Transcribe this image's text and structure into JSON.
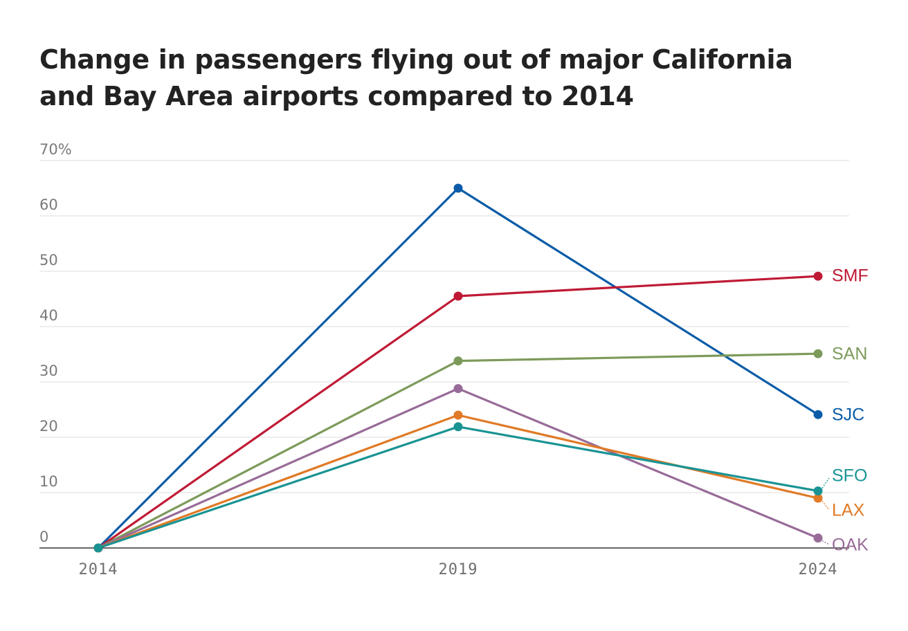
{
  "chart_data": {
    "type": "line",
    "title": "Change in passengers flying out of major California and Bay Area airports compared to 2014",
    "x": [
      "2014",
      "2019",
      "2024"
    ],
    "ylim": [
      0,
      70
    ],
    "yticks": [
      "70%",
      "60",
      "50",
      "40",
      "30",
      "20",
      "10",
      "0"
    ],
    "grid": true,
    "series": [
      {
        "name": "SJC",
        "values": [
          0,
          65.0,
          24.1
        ],
        "color": "#0a5ca8"
      },
      {
        "name": "SMF",
        "values": [
          0,
          45.5,
          49.1
        ],
        "color": "#bf1a35"
      },
      {
        "name": "SAN",
        "values": [
          0,
          33.8,
          35.1
        ],
        "color": "#7c9a5a"
      },
      {
        "name": "OAK",
        "values": [
          0,
          28.8,
          1.8
        ],
        "color": "#986b98"
      },
      {
        "name": "LAX",
        "values": [
          0,
          24.0,
          9.0
        ],
        "color": "#e07a26"
      },
      {
        "name": "SFO",
        "values": [
          0,
          21.9,
          10.3
        ],
        "color": "#1a9393"
      }
    ]
  }
}
